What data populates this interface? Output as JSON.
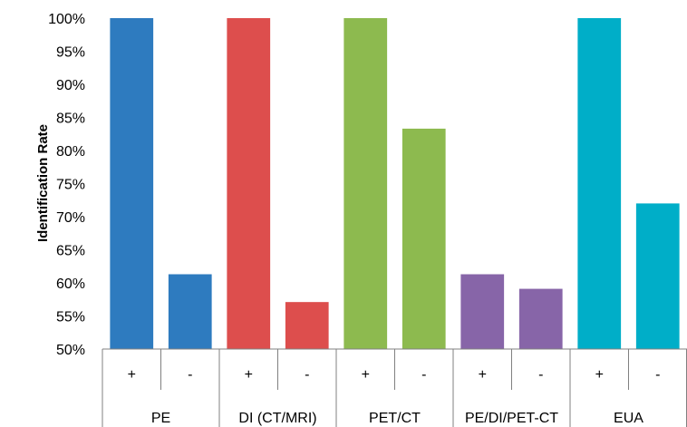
{
  "chart_data": {
    "type": "bar",
    "title": "",
    "ylabel": "Identification Rate",
    "xlabel": "",
    "ylim": [
      50,
      100
    ],
    "yticks": [
      50,
      55,
      60,
      65,
      70,
      75,
      80,
      85,
      90,
      95,
      100
    ],
    "ytick_labels": [
      "50%",
      "55%",
      "60%",
      "65%",
      "70%",
      "75%",
      "80%",
      "85%",
      "90%",
      "95%",
      "100%"
    ],
    "grid": false,
    "groups": [
      {
        "label": "PE",
        "color": "#2e7bbf",
        "bars": [
          {
            "label": "+",
            "value": 100
          },
          {
            "label": "-",
            "value": 61.3
          }
        ]
      },
      {
        "label": "DI (CT/MRI)",
        "color": "#dd4e4d",
        "bars": [
          {
            "label": "+",
            "value": 100
          },
          {
            "label": "-",
            "value": 57.1
          }
        ]
      },
      {
        "label": "PET/CT",
        "color": "#8dba4f",
        "bars": [
          {
            "label": "+",
            "value": 100
          },
          {
            "label": "-",
            "value": 83.3
          }
        ]
      },
      {
        "label": "PE/DI/PET-CT",
        "color": "#8765a8",
        "bars": [
          {
            "label": "+",
            "value": 61.3
          },
          {
            "label": "-",
            "value": 59.1
          }
        ]
      },
      {
        "label": "EUA",
        "color": "#00aec8",
        "bars": [
          {
            "label": "+",
            "value": 100
          },
          {
            "label": "-",
            "value": 72
          }
        ]
      }
    ]
  }
}
